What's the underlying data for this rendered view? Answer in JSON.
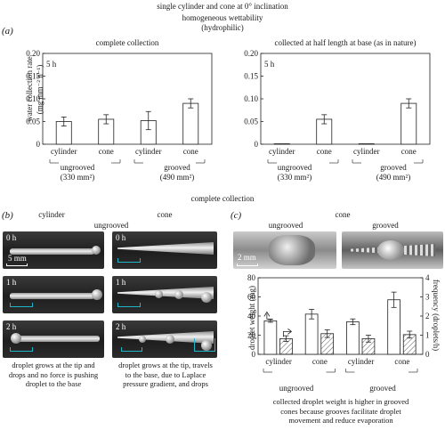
{
  "header": {
    "title": "single cylinder and cone at 0° inclination",
    "wettability_1": "homogeneous wettability",
    "wettability_2": "(hydrophilic)"
  },
  "panel_a": {
    "letter": "(a)",
    "ylabel_1": "water collection rate",
    "ylabel_2": "(mg mm⁻² h⁻¹)",
    "group_1_label": "ungrooved",
    "group_1_area": "(330 mm²)",
    "group_2_label": "grooved",
    "group_2_area": "(490 mm²)"
  },
  "panel_b": {
    "letter": "(b)",
    "section_title": "complete collection",
    "col_cylinder": "cylinder",
    "col_cone": "cone",
    "condition": "ungrooved",
    "times": [
      "0 h",
      "1 h",
      "2 h"
    ],
    "scale": "5 mm",
    "desc_cylinder": [
      "droplet grows at the tip and",
      "drops and no force is pushing",
      "droplet to the base"
    ],
    "desc_cone": [
      "droplet grows at the tip, travels",
      "to the base, due to Laplace",
      "pressure gradient, and drops"
    ]
  },
  "panel_c": {
    "letter": "(c)",
    "title": "cone",
    "photo_left": "ungrooved",
    "photo_right": "grooved",
    "scale": "2 mm",
    "caption": [
      "collected droplet weight is higher in grooved",
      "cones because grooves facilitate droplet",
      "movement and reduce evaporation"
    ]
  },
  "chart_data": [
    {
      "type": "bar",
      "title": "complete collection",
      "annotation": "5 h",
      "ylabel": "water collection rate (mg mm⁻² h⁻¹)",
      "ylim": [
        0,
        0.2
      ],
      "yticks": [
        "0",
        "0.05",
        "0.10",
        "0.15",
        "0.20"
      ],
      "categories": [
        "cylinder",
        "cone",
        "cylinder",
        "cone"
      ],
      "groups": [
        "ungrooved (330 mm²)",
        "grooved (490 mm²)"
      ],
      "values": [
        0.05,
        0.055,
        0.052,
        0.09
      ],
      "errors": [
        0.01,
        0.01,
        0.02,
        0.01
      ]
    },
    {
      "type": "bar",
      "title": "collected at half length at base (as in nature)",
      "annotation": "5 h",
      "ylim": [
        0,
        0.2
      ],
      "yticks": [
        "0",
        "0.05",
        "0.10",
        "0.15",
        "0.20"
      ],
      "categories": [
        "cylinder",
        "cone",
        "cylinder",
        "cone"
      ],
      "groups": [
        "ungrooved (330 mm²)",
        "grooved (490 mm²)"
      ],
      "values": [
        0.001,
        0.055,
        0.001,
        0.09
      ],
      "errors": [
        0,
        0.01,
        0,
        0.01
      ]
    },
    {
      "type": "bar",
      "ylabel": "droplet weight (mg)",
      "ylabel_right": "frequency (droplets/h)",
      "ylim": [
        0,
        80
      ],
      "ylim_right": [
        0,
        4
      ],
      "yticks": [
        "0",
        "20",
        "40",
        "60",
        "80"
      ],
      "yticks_right": [
        "0",
        "1",
        "2",
        "3",
        "4"
      ],
      "categories": [
        "cylinder",
        "cone",
        "cylinder",
        "cone"
      ],
      "groups": [
        "ungrooved",
        "grooved"
      ],
      "series": [
        {
          "axis": "left",
          "fill": "open",
          "values": [
            35,
            42,
            34,
            57
          ],
          "errors": [
            1.5,
            5,
            3,
            8
          ]
        },
        {
          "axis": "right",
          "fill": "hatched",
          "values": [
            0.82,
            1.08,
            0.82,
            1.03
          ],
          "errors": [
            0.15,
            0.2,
            0.18,
            0.18
          ]
        }
      ]
    }
  ],
  "colors": {
    "bracket_accent": "#1fb5c9",
    "axis": "#1a1a1a"
  }
}
